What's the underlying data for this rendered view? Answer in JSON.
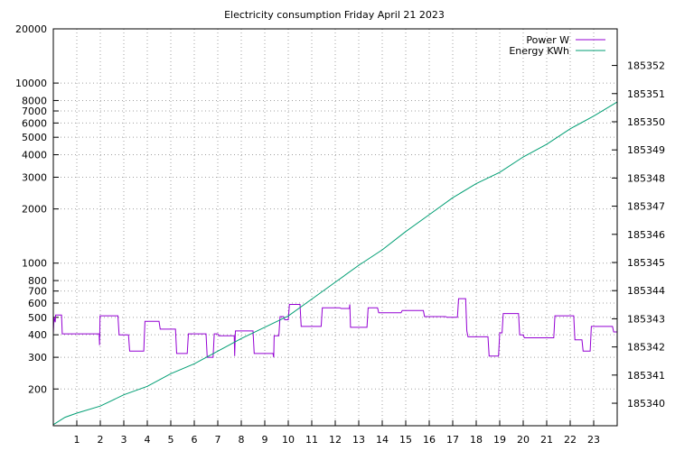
{
  "chart_data": {
    "type": "line",
    "title": "Electricity consumption Friday April 21 2023",
    "grid": true,
    "legend_position": "top-right",
    "x": {
      "range": [
        0,
        24
      ],
      "ticks": [
        1,
        2,
        3,
        4,
        5,
        6,
        7,
        8,
        9,
        10,
        11,
        12,
        13,
        14,
        15,
        16,
        17,
        18,
        19,
        20,
        21,
        22,
        23
      ]
    },
    "y_left": {
      "scale": "log",
      "range": [
        125,
        20000
      ],
      "ticks": [
        200,
        300,
        400,
        500,
        600,
        700,
        800,
        1000,
        2000,
        3000,
        4000,
        5000,
        6000,
        7000,
        8000,
        10000,
        20000
      ]
    },
    "y_right": {
      "scale": "linear",
      "range": [
        185339.2,
        185353.3
      ],
      "ticks": [
        185340,
        185341,
        185342,
        185343,
        185344,
        185345,
        185346,
        185347,
        185348,
        185349,
        185350,
        185351,
        185352
      ]
    },
    "colors": {
      "power": "#9400d3",
      "energy": "#009e73"
    },
    "series": [
      {
        "name": "Power W",
        "axis": "left",
        "points": [
          [
            0,
            405
          ],
          [
            0.03,
            500
          ],
          [
            0.08,
            470
          ],
          [
            0.1,
            515
          ],
          [
            0.35,
            515
          ],
          [
            0.38,
            405
          ],
          [
            1.95,
            405
          ],
          [
            1.97,
            350
          ],
          [
            1.99,
            510
          ],
          [
            2.75,
            510
          ],
          [
            2.8,
            400
          ],
          [
            3.2,
            400
          ],
          [
            3.25,
            325
          ],
          [
            3.85,
            325
          ],
          [
            3.9,
            475
          ],
          [
            4.5,
            475
          ],
          [
            4.55,
            430
          ],
          [
            5.2,
            430
          ],
          [
            5.25,
            315
          ],
          [
            5.7,
            315
          ],
          [
            5.75,
            405
          ],
          [
            6.5,
            405
          ],
          [
            6.55,
            300
          ],
          [
            6.8,
            300
          ],
          [
            6.85,
            405
          ],
          [
            7.0,
            405
          ],
          [
            7.05,
            395
          ],
          [
            7.7,
            395
          ],
          [
            7.72,
            305
          ],
          [
            7.75,
            420
          ],
          [
            8.5,
            420
          ],
          [
            8.55,
            315
          ],
          [
            9.35,
            315
          ],
          [
            9.38,
            300
          ],
          [
            9.4,
            395
          ],
          [
            9.6,
            395
          ],
          [
            9.65,
            505
          ],
          [
            9.8,
            505
          ],
          [
            9.85,
            485
          ],
          [
            10.0,
            485
          ],
          [
            10.05,
            590
          ],
          [
            10.5,
            590
          ],
          [
            10.55,
            445
          ],
          [
            11.4,
            445
          ],
          [
            11.45,
            565
          ],
          [
            12.2,
            565
          ],
          [
            12.25,
            560
          ],
          [
            12.6,
            560
          ],
          [
            12.62,
            590
          ],
          [
            12.65,
            440
          ],
          [
            13.35,
            440
          ],
          [
            13.4,
            565
          ],
          [
            13.8,
            565
          ],
          [
            13.85,
            530
          ],
          [
            14.8,
            530
          ],
          [
            14.85,
            545
          ],
          [
            15.75,
            545
          ],
          [
            15.8,
            505
          ],
          [
            16.7,
            505
          ],
          [
            16.75,
            500
          ],
          [
            17.2,
            500
          ],
          [
            17.25,
            635
          ],
          [
            17.55,
            635
          ],
          [
            17.6,
            420
          ],
          [
            17.65,
            390
          ],
          [
            18.5,
            390
          ],
          [
            18.55,
            305
          ],
          [
            18.95,
            305
          ],
          [
            19.0,
            410
          ],
          [
            19.1,
            410
          ],
          [
            19.15,
            525
          ],
          [
            19.8,
            525
          ],
          [
            19.85,
            400
          ],
          [
            20.0,
            400
          ],
          [
            20.05,
            385
          ],
          [
            21.3,
            385
          ],
          [
            21.35,
            510
          ],
          [
            22.15,
            510
          ],
          [
            22.2,
            375
          ],
          [
            22.5,
            375
          ],
          [
            22.55,
            325
          ],
          [
            22.85,
            325
          ],
          [
            22.9,
            445
          ],
          [
            23.8,
            445
          ],
          [
            23.85,
            415
          ],
          [
            24,
            415
          ]
        ]
      },
      {
        "name": "Energy KWh",
        "axis": "right",
        "points": [
          [
            0,
            185339.24
          ],
          [
            0.5,
            185339.5
          ],
          [
            1,
            185339.65
          ],
          [
            2,
            185339.9
          ],
          [
            3,
            185340.3
          ],
          [
            4,
            185340.6
          ],
          [
            5,
            185341.05
          ],
          [
            6,
            185341.4
          ],
          [
            7,
            185341.85
          ],
          [
            8,
            185342.3
          ],
          [
            9,
            185342.7
          ],
          [
            10,
            185343.1
          ],
          [
            11,
            185343.7
          ],
          [
            12,
            185344.3
          ],
          [
            13,
            185344.9
          ],
          [
            14,
            185345.45
          ],
          [
            15,
            185346.1
          ],
          [
            16,
            185346.7
          ],
          [
            17,
            185347.3
          ],
          [
            18,
            185347.8
          ],
          [
            19,
            185348.2
          ],
          [
            20,
            185348.75
          ],
          [
            21,
            185349.2
          ],
          [
            22,
            185349.75
          ],
          [
            23,
            185350.2
          ],
          [
            24,
            185350.7
          ]
        ]
      }
    ]
  }
}
